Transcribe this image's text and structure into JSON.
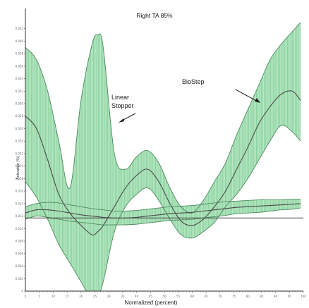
{
  "chart_data": {
    "type": "line",
    "title": "Right TA 85%",
    "xlabel": "Normalized (percent)",
    "ylabel": "Activation (%)",
    "xlim": [
      0,
      100
    ],
    "ylim": [
      0,
      0.045
    ],
    "x_ticks": [
      "0",
      "5",
      "10",
      "15",
      "20",
      "25",
      "30",
      "35",
      "40",
      "45",
      "50",
      "55",
      "60",
      "65",
      "70",
      "75",
      "80",
      "85",
      "90",
      "95",
      "100"
    ],
    "y_ticks": [
      "0",
      "0.002",
      "0.004",
      "0.006",
      "0.008",
      "0.010",
      "0.012",
      "0.014",
      "0.016",
      "0.018",
      "0.020",
      "0.022",
      "0.024",
      "0.026",
      "0.028",
      "0.030",
      "0.032",
      "0.034",
      "0.036",
      "0.038",
      "0.040",
      "0.042"
    ],
    "threshold": 0.0117,
    "annotations": [
      {
        "lines": [
          "Linear",
          "Stopper"
        ],
        "arrow_to": [
          30,
          0.0265
        ]
      },
      {
        "lines": [
          "BioStep"
        ],
        "arrow_to": [
          86,
          0.031
        ]
      }
    ],
    "series": [
      {
        "x": [
          0,
          4,
          8,
          12,
          16,
          20,
          24,
          26,
          28,
          32,
          36,
          40,
          44,
          48,
          52,
          56,
          60,
          64,
          68,
          72,
          76,
          80,
          84,
          88,
          92,
          96,
          99
        ],
        "mean": [
          0.028,
          0.026,
          0.021,
          0.0155,
          0.0125,
          0.0105,
          0.009,
          0.0095,
          0.0105,
          0.0135,
          0.0165,
          0.0185,
          0.0195,
          0.0175,
          0.014,
          0.0112,
          0.0105,
          0.0115,
          0.0135,
          0.016,
          0.0195,
          0.023,
          0.0268,
          0.0295,
          0.0315,
          0.032,
          0.0305
        ],
        "upper": [
          0.039,
          0.037,
          0.032,
          0.024,
          0.0165,
          0.0305,
          0.0395,
          0.041,
          0.039,
          0.022,
          0.0195,
          0.0215,
          0.0225,
          0.0205,
          0.0165,
          0.0135,
          0.0125,
          0.0145,
          0.0175,
          0.0205,
          0.025,
          0.029,
          0.033,
          0.037,
          0.0395,
          0.0415,
          0.043
        ],
        "lower": [
          0.0175,
          0.015,
          0.0115,
          0.0075,
          0.0045,
          0.0015,
          -0.0015,
          -0.0008,
          0.0015,
          0.0095,
          0.0135,
          0.0155,
          0.0165,
          0.0145,
          0.0115,
          0.009,
          0.0085,
          0.0095,
          0.011,
          0.0135,
          0.0155,
          0.018,
          0.021,
          0.024,
          0.0265,
          0.0255,
          0.024
        ]
      },
      {
        "x": [
          0,
          4,
          8,
          12,
          16,
          20,
          24,
          28,
          32,
          36,
          40,
          44,
          48,
          52,
          56,
          60,
          64,
          68,
          72,
          76,
          80,
          84,
          88,
          92,
          96,
          99
        ],
        "mean": [
          0.0125,
          0.013,
          0.013,
          0.0128,
          0.0125,
          0.0122,
          0.012,
          0.0118,
          0.0117,
          0.0117,
          0.0118,
          0.012,
          0.0122,
          0.0124,
          0.0125,
          0.0126,
          0.0128,
          0.013,
          0.0132,
          0.0134,
          0.0135,
          0.0136,
          0.0137,
          0.0138,
          0.0139,
          0.014
        ],
        "upper": [
          0.0135,
          0.014,
          0.0142,
          0.0141,
          0.0138,
          0.0135,
          0.0132,
          0.013,
          0.0128,
          0.0128,
          0.0129,
          0.0131,
          0.0133,
          0.0135,
          0.0136,
          0.0137,
          0.0139,
          0.0141,
          0.0143,
          0.0144,
          0.0145,
          0.0146,
          0.0146,
          0.0146,
          0.0147,
          0.0147
        ],
        "lower": [
          0.0115,
          0.012,
          0.0118,
          0.0115,
          0.0112,
          0.011,
          0.0108,
          0.0106,
          0.0106,
          0.0106,
          0.0107,
          0.0109,
          0.0111,
          0.0113,
          0.0114,
          0.0115,
          0.0117,
          0.0119,
          0.0121,
          0.0124,
          0.0125,
          0.0126,
          0.0128,
          0.013,
          0.0131,
          0.0133
        ]
      }
    ]
  }
}
